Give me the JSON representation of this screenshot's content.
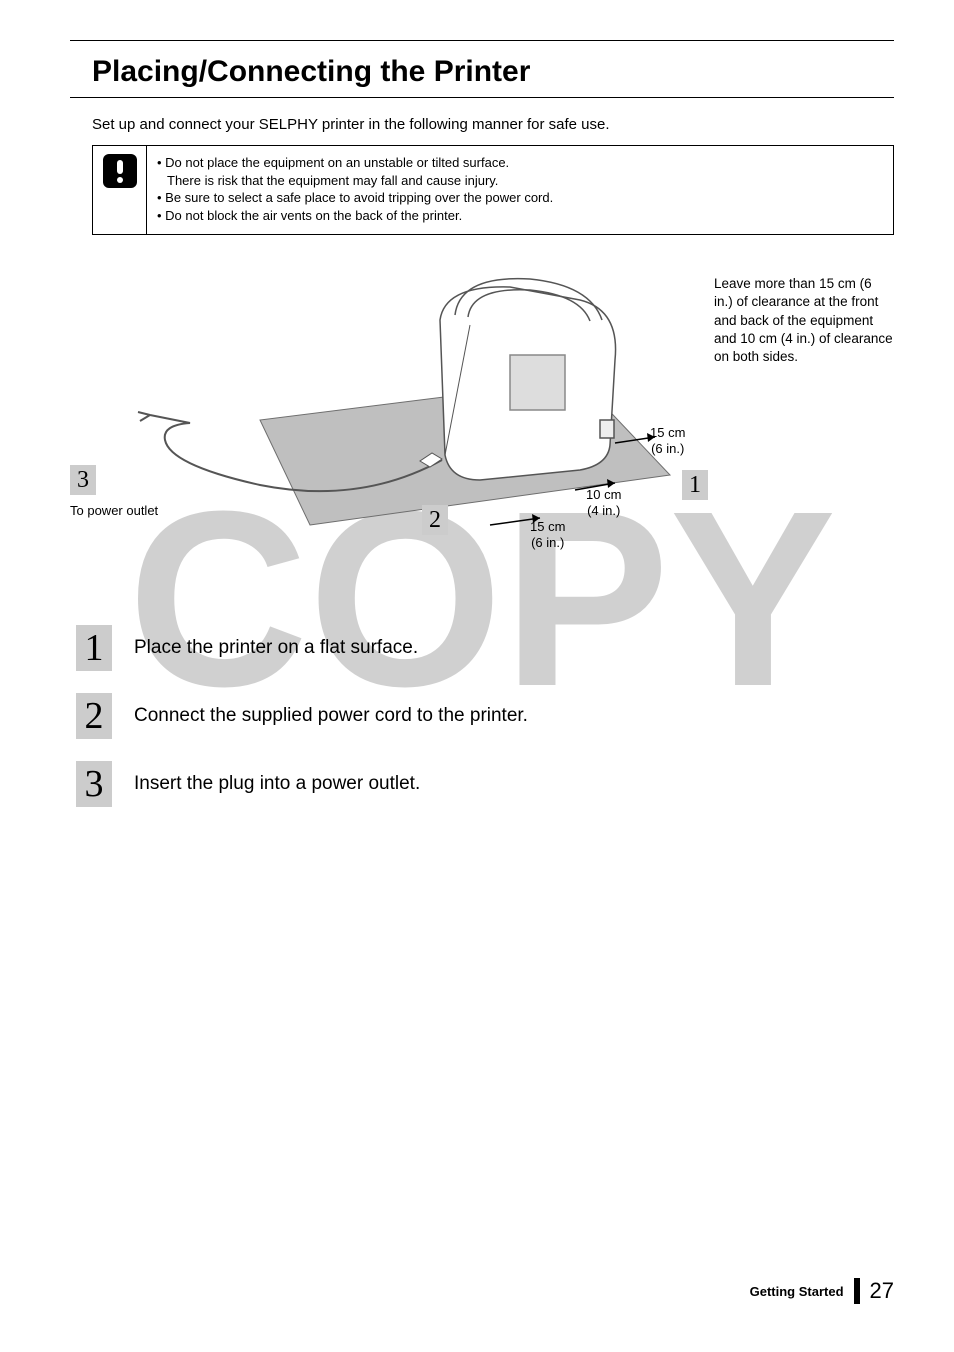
{
  "title": "Placing/Connecting the Printer",
  "intro": "Set up and connect your SELPHY printer in the following manner for safe use.",
  "caution": {
    "lines": [
      "Do not place the equipment on an unstable or tilted surface.",
      "There is risk that the equipment may fall and cause injury.",
      "Be sure to select a safe place to avoid tripping over the power cord.",
      "Do not block the air vents on the back of the printer."
    ],
    "line_is_sub": [
      false,
      true,
      false,
      false
    ]
  },
  "diagram": {
    "clearance_note": "Leave more than 15 cm (6 in.) of clearance at the front and back of the equipment and 10 cm (4 in.) of clearance on both sides.",
    "power_outlet_label": "To power outlet",
    "dim_front": "15 cm\n(6 in.)",
    "dim_back": "15 cm\n(6 in.)",
    "dim_side": "10 cm\n(4 in.)",
    "badge1": "1",
    "badge2": "2",
    "badge3": "3",
    "watermark_text": "COPY",
    "colors": {
      "surface_fill": "#bfbfbf",
      "surface_edge": "#6e6e6e",
      "printer_fill": "#ffffff",
      "printer_stroke": "#555555",
      "badge_bg": "#cccccc",
      "cord": "#555555"
    }
  },
  "steps": [
    {
      "n": "1",
      "text": "Place the printer on a flat surface."
    },
    {
      "n": "2",
      "text": "Connect the supplied power cord to the printer."
    },
    {
      "n": "3",
      "text": "Insert the plug into a power outlet."
    }
  ],
  "footer": {
    "section": "Getting Started",
    "page": "27"
  }
}
